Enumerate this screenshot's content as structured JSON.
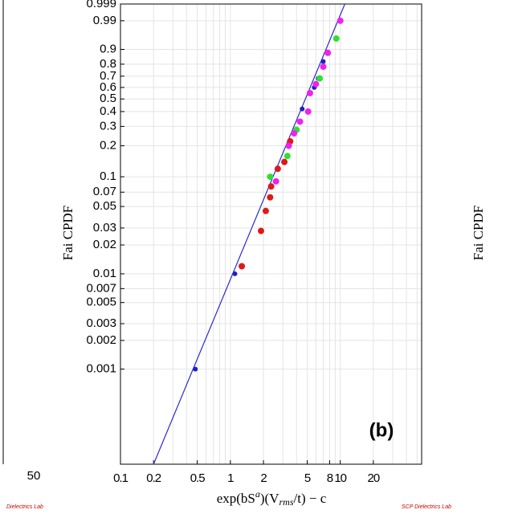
{
  "chart_data": {
    "type": "scatter",
    "xscale": "log",
    "yscale": "weibull",
    "xlabel_parts": [
      "exp(bS",
      "a",
      ")(V",
      "rms",
      "/t) − c"
    ],
    "ylabel": "Fai CPDF",
    "panel_label": "(b)",
    "xlim": [
      0.1,
      55
    ],
    "ylim": [
      0.0001,
      0.999
    ],
    "xticks": [
      0.1,
      0.2,
      0.5,
      1,
      2,
      5,
      8,
      10,
      20
    ],
    "yticks": [
      0.001,
      0.002,
      0.003,
      0.005,
      0.007,
      0.01,
      0.02,
      0.03,
      0.05,
      0.07,
      0.1,
      0.2,
      0.3,
      0.4,
      0.5,
      0.6,
      0.7,
      0.8,
      0.9,
      0.99,
      0.999
    ],
    "grid": true,
    "minor_grid": true,
    "fit": {
      "color": "#2b2bd0",
      "x": [
        0.2,
        11
      ],
      "values": [
        0.0001,
        0.999
      ]
    },
    "series": [
      {
        "color": "#2020c8",
        "x": [
          0.48,
          1.1,
          4.5,
          5.8,
          6.3,
          7.0
        ],
        "values": [
          0.001,
          0.01,
          0.42,
          0.6,
          0.68,
          0.82
        ]
      },
      {
        "color": "#e01818",
        "x": [
          1.27,
          1.9,
          2.1,
          2.3,
          2.35,
          2.7,
          3.1,
          3.5
        ],
        "values": [
          0.012,
          0.028,
          0.045,
          0.062,
          0.08,
          0.12,
          0.14,
          0.22
        ]
      },
      {
        "color": "#30e030",
        "x": [
          2.3,
          3.3,
          4.0,
          6.5,
          9.2
        ],
        "values": [
          0.1,
          0.16,
          0.28,
          0.68,
          0.95
        ]
      },
      {
        "color": "#ee22ee",
        "x": [
          2.6,
          3.4,
          3.8,
          4.3,
          5.1,
          5.3,
          6.0,
          7.0,
          7.7,
          10
        ],
        "values": [
          0.09,
          0.2,
          0.26,
          0.33,
          0.4,
          0.55,
          0.63,
          0.78,
          0.88,
          0.99
        ]
      }
    ]
  },
  "side_panels": {
    "left_tick": "50",
    "left_logo": "Dielectrics Lab",
    "right_logo": "SCP Dielectrics Lab",
    "right_ylabel": "Fai CPDF"
  }
}
